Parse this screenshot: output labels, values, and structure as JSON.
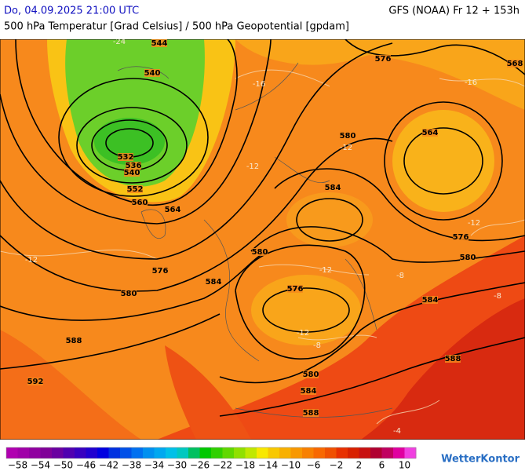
{
  "header": {
    "date": "Do, 04.09.2025 21:00 UTC",
    "model": "GFS (NOAA) Fr 12 + 153h",
    "subtitle": "500 hPa Temperatur [Grad Celsius] / 500 hPa Geopotential [gpdam]"
  },
  "map": {
    "geopotential_labels": [
      "544",
      "540",
      "532",
      "536",
      "540",
      "552",
      "560",
      "564",
      "576",
      "580",
      "588",
      "592",
      "576",
      "568",
      "580",
      "564",
      "584",
      "576",
      "580",
      "580",
      "584",
      "576",
      "584",
      "580",
      "584",
      "588",
      "588"
    ],
    "temperature_labels": [
      "-24",
      "-16",
      "-16",
      "-12",
      "-12",
      "-8",
      "-8",
      "-12",
      "-12",
      "-8",
      "-4",
      "-12",
      "-12"
    ]
  },
  "colorbar": {
    "range": [
      -60,
      12
    ],
    "colors": [
      "#b000b0",
      "#a000a8",
      "#9000a0",
      "#800098",
      "#6a00a0",
      "#5000b0",
      "#3800c0",
      "#2000d0",
      "#0000e0",
      "#0030e0",
      "#0050e8",
      "#0070f0",
      "#0090f0",
      "#00a8f0",
      "#00c0e8",
      "#00c8c0",
      "#00c060",
      "#00c800",
      "#30d000",
      "#60d800",
      "#90e000",
      "#c0e800",
      "#f8e800",
      "#f8c800",
      "#f8b000",
      "#f89800",
      "#f88000",
      "#f86800",
      "#f05000",
      "#e83000",
      "#d82000",
      "#c81010",
      "#b00030",
      "#c00060",
      "#e000a0",
      "#f040e0"
    ],
    "ticks": [
      {
        "value": -58,
        "label": "−58"
      },
      {
        "value": -54,
        "label": "−54"
      },
      {
        "value": -50,
        "label": "−50"
      },
      {
        "value": -46,
        "label": "−46"
      },
      {
        "value": -42,
        "label": "−42"
      },
      {
        "value": -38,
        "label": "−38"
      },
      {
        "value": -34,
        "label": "−34"
      },
      {
        "value": -30,
        "label": "−30"
      },
      {
        "value": -26,
        "label": "−26"
      },
      {
        "value": -22,
        "label": "−22"
      },
      {
        "value": -18,
        "label": "−18"
      },
      {
        "value": -14,
        "label": "−14"
      },
      {
        "value": -10,
        "label": "−10"
      },
      {
        "value": -6,
        "label": "−6"
      },
      {
        "value": -2,
        "label": "−2"
      },
      2,
      6,
      10
    ]
  },
  "brand": "WetterKontor"
}
